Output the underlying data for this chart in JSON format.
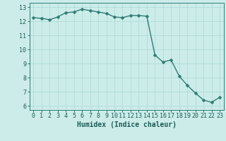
{
  "x": [
    0,
    1,
    2,
    3,
    4,
    5,
    6,
    7,
    8,
    9,
    10,
    11,
    12,
    13,
    14,
    15,
    16,
    17,
    18,
    19,
    20,
    21,
    22,
    23
  ],
  "y": [
    12.25,
    12.2,
    12.1,
    12.3,
    12.6,
    12.65,
    12.85,
    12.75,
    12.65,
    12.55,
    12.3,
    12.25,
    12.4,
    12.4,
    12.35,
    9.6,
    9.1,
    9.25,
    8.1,
    7.45,
    6.9,
    6.4,
    6.25,
    6.6
  ],
  "line_color": "#2d7d74",
  "marker_color": "#2d7d74",
  "bg_color": "#ccecea",
  "grid_color": "#aad8d5",
  "axis_color": "#2d7d74",
  "tick_color": "#1a5c55",
  "xlabel": "Humidex (Indice chaleur)",
  "xlim": [
    -0.5,
    23.5
  ],
  "ylim": [
    5.7,
    13.3
  ],
  "yticks": [
    6,
    7,
    8,
    9,
    10,
    11,
    12,
    13
  ],
  "xticks": [
    0,
    1,
    2,
    3,
    4,
    5,
    6,
    7,
    8,
    9,
    10,
    11,
    12,
    13,
    14,
    15,
    16,
    17,
    18,
    19,
    20,
    21,
    22,
    23
  ],
  "font_size": 6,
  "xlabel_font_size": 7,
  "line_width": 1.0,
  "marker_size": 2.5
}
